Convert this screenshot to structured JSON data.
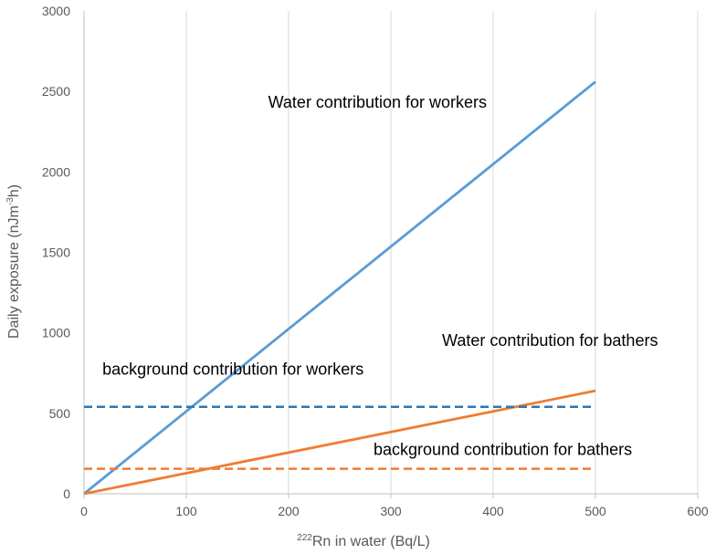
{
  "chart_data": {
    "type": "line",
    "title": "",
    "xlabel": {
      "sup": "222",
      "text": "Rn in water (Bq/L)"
    },
    "ylabel": {
      "prefix": "Daily exposure (nJm",
      "sup": "-3",
      "suffix": "h)"
    },
    "xlim": [
      0,
      600
    ],
    "ylim": [
      0,
      3000
    ],
    "xticks": [
      0,
      100,
      200,
      300,
      400,
      500,
      600
    ],
    "yticks": [
      0,
      500,
      1000,
      1500,
      2000,
      2500,
      3000
    ],
    "grid": {
      "vertical": true,
      "horizontal": false
    },
    "legend": "none",
    "series": [
      {
        "x": [
          0,
          500
        ],
        "y": [
          0,
          2560
        ],
        "color": "#5B9BD5",
        "style": "solid"
      },
      {
        "x": [
          0,
          500
        ],
        "y": [
          0,
          640
        ],
        "color": "#ED7D31",
        "style": "solid"
      },
      {
        "x": [
          0,
          500
        ],
        "y": [
          540,
          540
        ],
        "color": "#2E75B6",
        "style": "dashed"
      },
      {
        "x": [
          0,
          500
        ],
        "y": [
          155,
          155
        ],
        "color": "#ED7D31",
        "style": "dashed"
      }
    ],
    "annotations": [
      {
        "text": "Water contribution  for workers",
        "x": 180,
        "y": 2400
      },
      {
        "text": "Water contribution for bathers",
        "x": 350,
        "y": 920
      },
      {
        "text": "background contribution for workers",
        "x": 18,
        "y": 740
      },
      {
        "text": "background contribution for bathers",
        "x": 283,
        "y": 240
      }
    ]
  }
}
